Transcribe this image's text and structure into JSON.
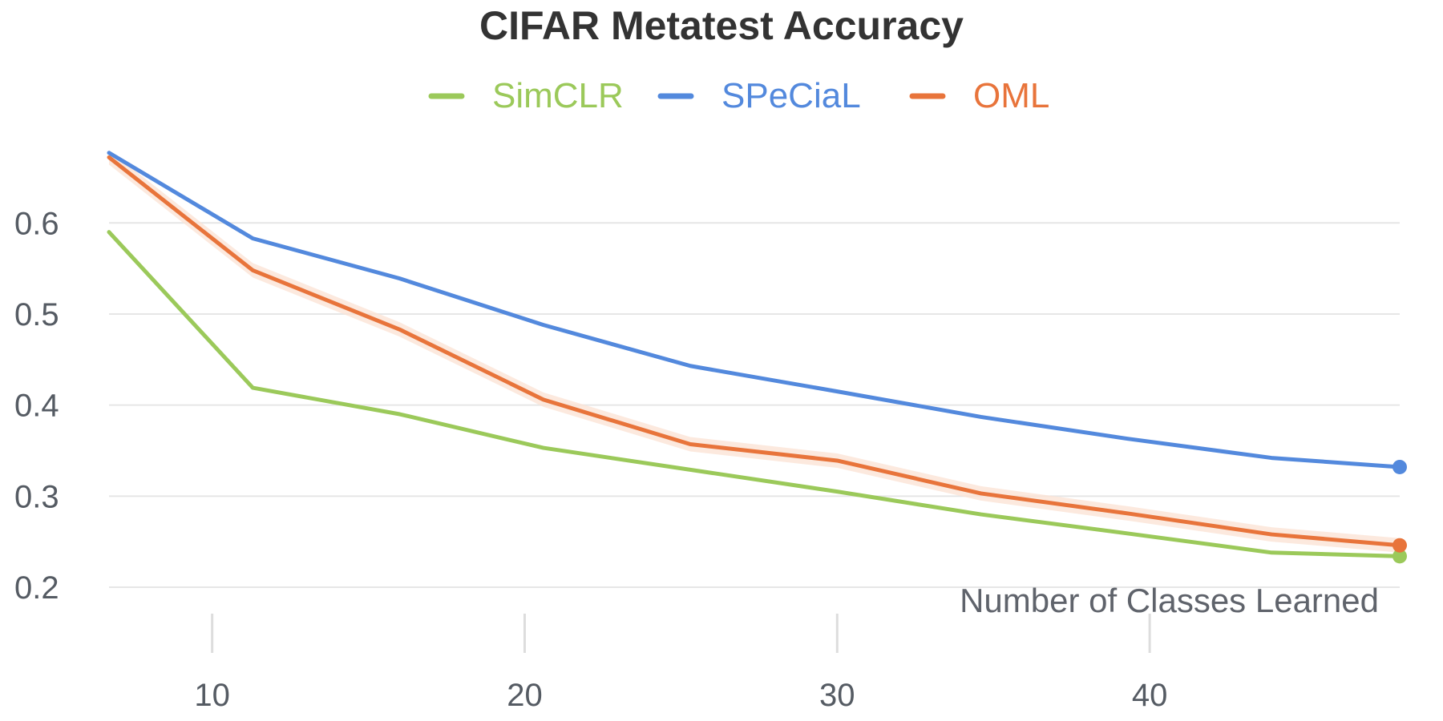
{
  "chart_data": {
    "type": "line",
    "title": "CIFAR Metatest Accuracy",
    "xlabel": "Number of Classes Learned",
    "ylabel": "",
    "xlim": [
      6.7,
      48
    ],
    "ylim": [
      0.2,
      0.69
    ],
    "xticks": [
      10,
      20,
      30,
      40
    ],
    "yticks": [
      0.2,
      0.3,
      0.4,
      0.5,
      0.6
    ],
    "x": [
      6.7,
      11.3,
      16,
      20.6,
      25.3,
      30,
      34.6,
      39.3,
      43.9,
      48
    ],
    "grid": "horizontal",
    "legend_position": "top-center",
    "series": [
      {
        "name": "SimCLR",
        "color": "#9bc95a",
        "values": [
          0.59,
          0.419,
          0.39,
          0.353,
          0.329,
          0.305,
          0.28,
          0.259,
          0.238,
          0.234
        ]
      },
      {
        "name": "SPeCiaL",
        "color": "#5389dd",
        "values": [
          0.677,
          0.583,
          0.539,
          0.488,
          0.443,
          0.415,
          0.387,
          0.363,
          0.342,
          0.332
        ]
      },
      {
        "name": "OML",
        "color": "#e8743b",
        "band_color": "#fbe3d6",
        "values": [
          0.672,
          0.548,
          0.483,
          0.406,
          0.357,
          0.339,
          0.303,
          0.281,
          0.258,
          0.246
        ]
      }
    ]
  }
}
